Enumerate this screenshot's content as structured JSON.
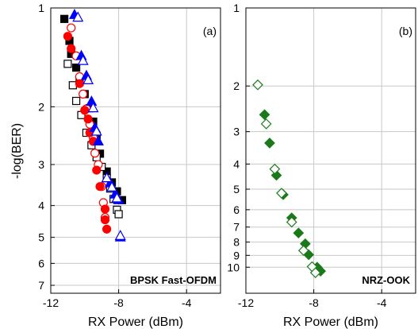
{
  "chart_data": [
    {
      "type": "scatter",
      "panel_label": "(a)",
      "caption": "BPSK Fast-OFDM",
      "xlabel": "RX Power (dBm)",
      "ylabel": "-log(BER)",
      "xlim": [
        -12,
        -2
      ],
      "ylim": [
        1,
        7
      ],
      "yscale": "log",
      "grid": true,
      "xticks": [
        "-12",
        "-8",
        "-4"
      ],
      "yticks": [
        "1",
        "2",
        "3",
        "4",
        "5",
        "6",
        "7"
      ],
      "series": [
        {
          "marker": "square",
          "fill": "filled",
          "color": "#000000",
          "points": [
            [
              -11.2,
              1.08
            ],
            [
              -10.9,
              1.26
            ],
            [
              -10.8,
              1.38
            ],
            [
              -10.5,
              1.52
            ],
            [
              -10.3,
              1.68
            ],
            [
              -10.0,
              1.83
            ],
            [
              -9.7,
              2.02
            ],
            [
              -9.5,
              2.22
            ],
            [
              -9.3,
              2.45
            ],
            [
              -9.1,
              2.78
            ],
            [
              -8.7,
              3.15
            ],
            [
              -8.4,
              3.4
            ],
            [
              -8.1,
              3.62
            ],
            [
              -7.8,
              3.85
            ]
          ]
        },
        {
          "marker": "square",
          "fill": "open",
          "color": "#000000",
          "points": [
            [
              -11.0,
              1.48
            ],
            [
              -10.7,
              1.72
            ],
            [
              -10.5,
              1.92
            ],
            [
              -10.2,
              2.12
            ],
            [
              -9.9,
              2.4
            ],
            [
              -9.6,
              2.62
            ],
            [
              -9.3,
              2.85
            ],
            [
              -9.0,
              3.05
            ],
            [
              -8.7,
              3.3
            ],
            [
              -8.5,
              3.55
            ],
            [
              -8.3,
              3.82
            ],
            [
              -8.1,
              4.12
            ],
            [
              -8.0,
              4.25
            ]
          ]
        },
        {
          "marker": "circle",
          "fill": "open",
          "color": "#ff0000",
          "points": [
            [
              -10.8,
              1.15
            ],
            [
              -10.5,
              1.4
            ],
            [
              -10.3,
              1.62
            ],
            [
              -10.1,
              1.83
            ],
            [
              -9.9,
              2.03
            ],
            [
              -9.7,
              2.26
            ],
            [
              -9.5,
              2.48
            ],
            [
              -9.4,
              2.77
            ],
            [
              -9.2,
              3.0
            ],
            [
              -9.0,
              3.5
            ],
            [
              -8.9,
              3.92
            ],
            [
              -8.8,
              4.35
            ]
          ]
        },
        {
          "marker": "circle",
          "fill": "filled",
          "color": "#ff0000",
          "points": [
            [
              -11.0,
              1.22
            ],
            [
              -10.8,
              1.33
            ],
            [
              -10.3,
              1.7
            ],
            [
              -10.0,
              2.05
            ],
            [
              -9.8,
              2.18
            ],
            [
              -9.7,
              2.4
            ],
            [
              -9.5,
              2.55
            ],
            [
              -9.3,
              3.12
            ],
            [
              -9.1,
              3.5
            ],
            [
              -8.8,
              4.1
            ],
            [
              -8.8,
              4.42
            ],
            [
              -8.7,
              4.72
            ]
          ]
        },
        {
          "marker": "triangle",
          "fill": "filled",
          "color": "#0000ff",
          "points": [
            [
              -10.6,
              1.05
            ],
            [
              -10.2,
              1.4
            ],
            [
              -9.9,
              1.61
            ],
            [
              -9.6,
              1.93
            ],
            [
              -9.4,
              2.32
            ],
            [
              -9.2,
              2.55
            ],
            [
              -8.5,
              3.42
            ],
            [
              -8.2,
              3.7
            ],
            [
              -8.0,
              3.85
            ],
            [
              -7.9,
              5.0
            ]
          ]
        },
        {
          "marker": "triangle",
          "fill": "open",
          "color": "#0000ff",
          "points": [
            [
              -10.4,
              1.07
            ],
            [
              -10.1,
              1.45
            ],
            [
              -9.8,
              1.66
            ],
            [
              -9.5,
              2.02
            ],
            [
              -9.3,
              2.38
            ],
            [
              -8.7,
              3.3
            ],
            [
              -8.4,
              3.52
            ],
            [
              -8.1,
              3.8
            ],
            [
              -7.9,
              4.95
            ]
          ]
        }
      ]
    },
    {
      "type": "scatter",
      "panel_label": "(b)",
      "caption": "NRZ-OOK",
      "xlabel": "RX Power (dBm)",
      "ylabel": "",
      "xlim": [
        -12,
        -2
      ],
      "ylim": [
        1,
        12
      ],
      "yscale": "log",
      "grid": true,
      "xticks": [
        "-12",
        "-8",
        "-4"
      ],
      "yticks": [
        "1",
        "2",
        "3",
        "4",
        "5",
        "6",
        "7",
        "8",
        "9",
        "10"
      ],
      "series": [
        {
          "marker": "diamond",
          "fill": "filled",
          "color": "#1a7a1a",
          "points": [
            [
              -10.9,
              2.58
            ],
            [
              -10.6,
              3.32
            ],
            [
              -10.2,
              4.42
            ],
            [
              -9.8,
              5.25
            ],
            [
              -9.3,
              6.45
            ],
            [
              -8.9,
              7.38
            ],
            [
              -8.5,
              8.12
            ],
            [
              -8.3,
              8.95
            ],
            [
              -7.8,
              10.0
            ],
            [
              -7.6,
              10.35
            ]
          ]
        },
        {
          "marker": "diamond",
          "fill": "open",
          "color": "#1a7a1a",
          "points": [
            [
              -11.3,
              1.98
            ],
            [
              -10.8,
              2.8
            ],
            [
              -10.3,
              4.18
            ],
            [
              -9.9,
              5.18
            ],
            [
              -9.3,
              6.7
            ],
            [
              -8.6,
              8.62
            ],
            [
              -8.1,
              9.95
            ],
            [
              -7.9,
              10.5
            ]
          ]
        }
      ]
    }
  ]
}
